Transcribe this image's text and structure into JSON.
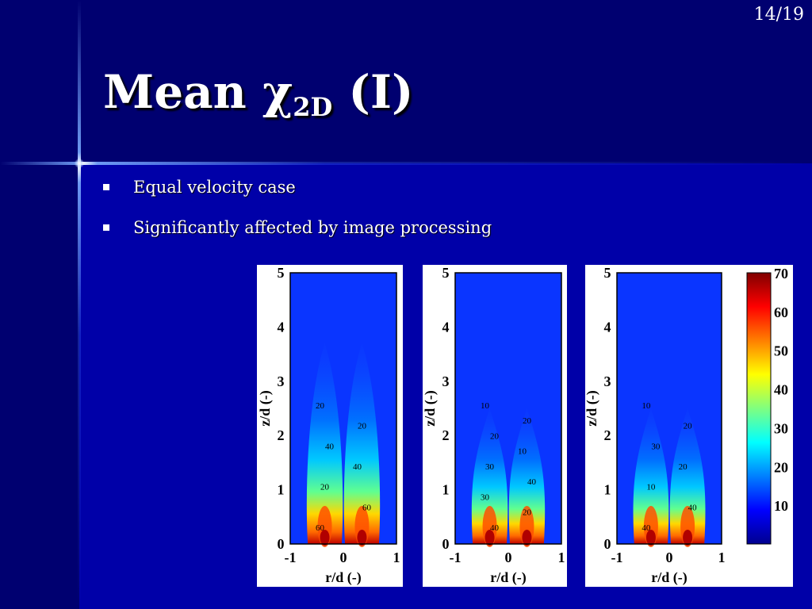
{
  "page_number": "14/19",
  "title": {
    "main": "Mean ",
    "symbol": "χ",
    "subscript": "2D",
    "suffix": " (I)"
  },
  "bullets": [
    "Equal velocity case",
    "Significantly affected by image processing"
  ],
  "chart_data": {
    "type": "heatmap",
    "xlabel": "r/d (-)",
    "ylabel": "z/d (-)",
    "xlim": [
      -1,
      1
    ],
    "ylim": [
      0,
      5
    ],
    "x_ticks": [
      "-1",
      "0",
      "1"
    ],
    "y_ticks": [
      "0",
      "1",
      "2",
      "3",
      "4",
      "5"
    ],
    "colorbar": {
      "range": [
        0,
        70
      ],
      "ticks": [
        "10",
        "20",
        "30",
        "40",
        "50",
        "60",
        "70"
      ]
    },
    "panels": [
      {
        "contour_labels": [
          "20",
          "20",
          "40",
          "40",
          "20",
          "60",
          "60"
        ]
      },
      {
        "contour_labels": [
          "10",
          "20",
          "20",
          "10",
          "30",
          "40",
          "30",
          "20",
          "40"
        ]
      },
      {
        "contour_labels": [
          "10",
          "20",
          "30",
          "20",
          "10",
          "40",
          "40"
        ]
      }
    ]
  }
}
